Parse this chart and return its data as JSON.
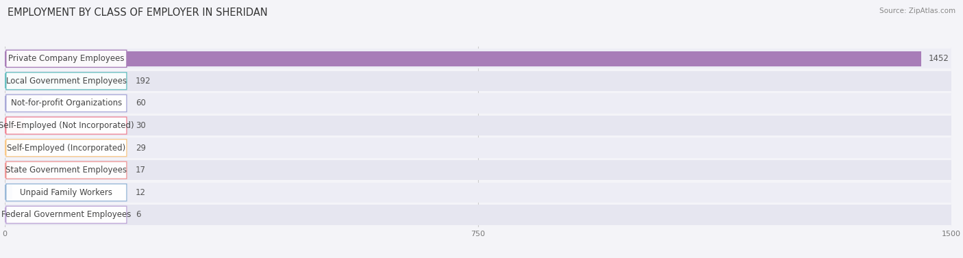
{
  "title": "EMPLOYMENT BY CLASS OF EMPLOYER IN SHERIDAN",
  "source": "Source: ZipAtlas.com",
  "categories": [
    "Private Company Employees",
    "Local Government Employees",
    "Not-for-profit Organizations",
    "Self-Employed (Not Incorporated)",
    "Self-Employed (Incorporated)",
    "State Government Employees",
    "Unpaid Family Workers",
    "Federal Government Employees"
  ],
  "values": [
    1452,
    192,
    60,
    30,
    29,
    17,
    12,
    6
  ],
  "bar_colors": [
    "#a87db8",
    "#66bfc0",
    "#a8a8d8",
    "#f08898",
    "#f8c888",
    "#f09898",
    "#98b8d8",
    "#c0a8d8"
  ],
  "row_bg_even": "#ededf5",
  "row_bg_odd": "#e6e6f0",
  "xlim_max": 1500,
  "xticks": [
    0,
    750,
    1500
  ],
  "title_fontsize": 10.5,
  "label_fontsize": 8.5,
  "value_fontsize": 8.5,
  "source_fontsize": 7.5,
  "background_color": "#f4f4f8"
}
